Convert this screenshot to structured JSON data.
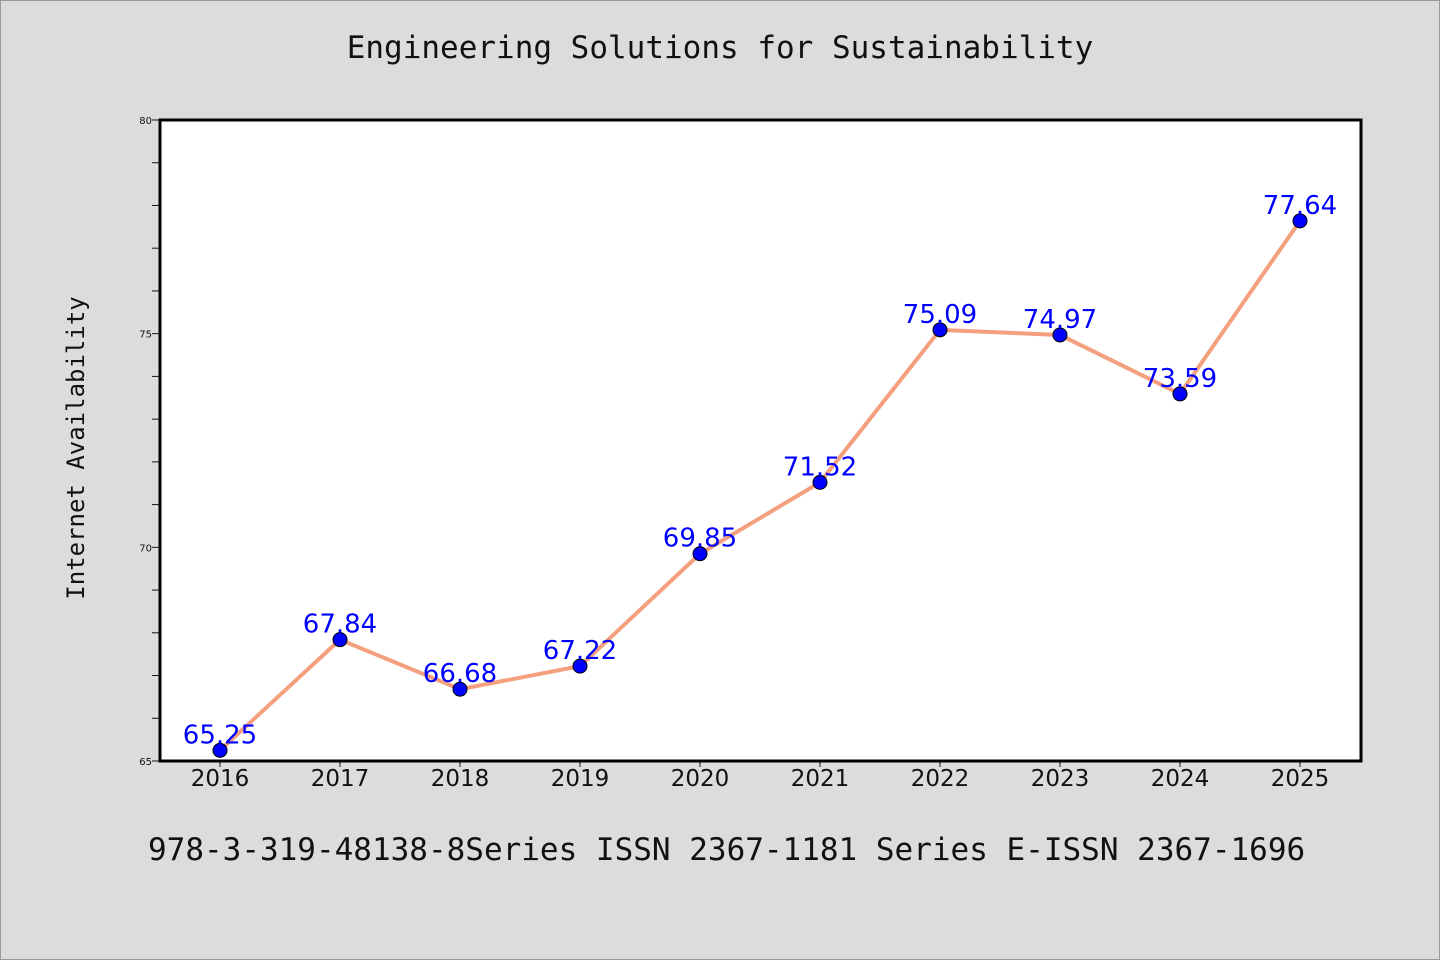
{
  "chart_data": {
    "type": "line",
    "title": "Engineering Solutions for Sustainability",
    "xlabel": "",
    "ylabel": "Internet Availability",
    "categories": [
      "2016",
      "2017",
      "2018",
      "2019",
      "2020",
      "2021",
      "2022",
      "2023",
      "2024",
      "2025"
    ],
    "series": [
      {
        "values": [
          65.25,
          67.84,
          66.68,
          67.22,
          69.85,
          71.52,
          75.09,
          74.97,
          73.59,
          77.64
        ],
        "line_color": "#f4a07e",
        "marker_color": "#0000ff"
      }
    ],
    "data_labels": [
      "65.25",
      "67.84",
      "66.68",
      "67.22",
      "69.85",
      "71.52",
      "75.09",
      "74.97",
      "73.59",
      "77.64"
    ],
    "ylim": [
      65,
      80
    ],
    "y_ticks": [
      "65",
      "70",
      "75",
      "80"
    ],
    "label_color": "#0000ff",
    "grid": false,
    "legend": "none"
  },
  "footer_note": "978-3-319-48138-8Series ISSN 2367-1181 Series E-ISSN 2367-1696"
}
